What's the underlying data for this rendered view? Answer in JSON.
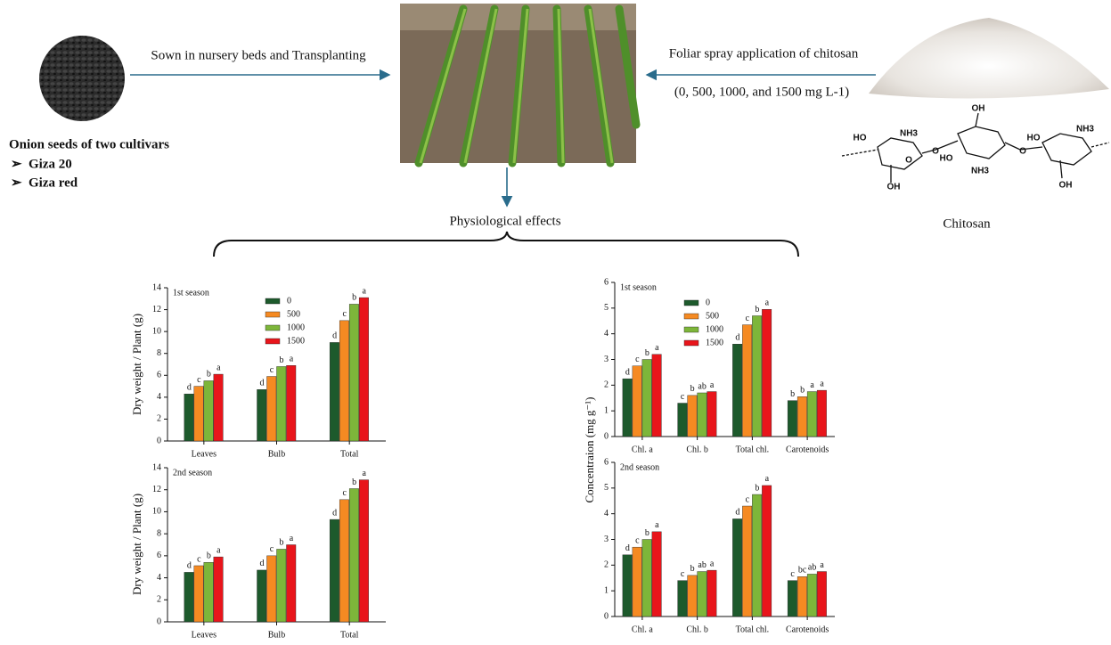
{
  "diagram": {
    "sowing_label": "Sown in nursery beds and Transplanting",
    "spray_label": "Foliar spray application of chitosan",
    "dose_label": "(0, 500, 1000, and 1500 mg L-1)",
    "seeds_title": "Onion seeds of two cultivars",
    "cultivars": [
      "Giza 20",
      "Giza red"
    ],
    "effects_label": "Physiological effects",
    "chitosan_label": "Chitosan",
    "structure_labels": [
      "HO",
      "NH3",
      "O",
      "O",
      "OH",
      "HO",
      "NH3",
      "O",
      "HO",
      "NH3",
      "OH",
      "OH"
    ]
  },
  "chart_data": [
    {
      "type": "bar",
      "subtitle": "1st season",
      "ylabel": "Dry weight / Plant (g)",
      "categories": [
        "Leaves",
        "Bulb",
        "Total"
      ],
      "ylim": [
        0,
        14
      ],
      "yticks": [
        0,
        2,
        4,
        6,
        8,
        10,
        12,
        14
      ],
      "legend": true,
      "series": [
        {
          "name": "0",
          "color": "#1d5a2c",
          "values": [
            4.3,
            4.7,
            9.0
          ],
          "letters": [
            "d",
            "d",
            "d"
          ]
        },
        {
          "name": "500",
          "color": "#f58a22",
          "values": [
            5.0,
            5.9,
            11.0
          ],
          "letters": [
            "c",
            "c",
            "c"
          ]
        },
        {
          "name": "1000",
          "color": "#7db63a",
          "values": [
            5.5,
            6.8,
            12.5
          ],
          "letters": [
            "b",
            "b",
            "b"
          ]
        },
        {
          "name": "1500",
          "color": "#e8151b",
          "values": [
            6.1,
            6.9,
            13.1
          ],
          "letters": [
            "a",
            "a",
            "a"
          ]
        }
      ]
    },
    {
      "type": "bar",
      "subtitle": "2nd season",
      "ylabel": "Dry weight / Plant (g)",
      "categories": [
        "Leaves",
        "Bulb",
        "Total"
      ],
      "ylim": [
        0,
        14
      ],
      "yticks": [
        0,
        2,
        4,
        6,
        8,
        10,
        12,
        14
      ],
      "legend": false,
      "series": [
        {
          "color": "#1d5a2c",
          "values": [
            4.5,
            4.7,
            9.3
          ],
          "letters": [
            "d",
            "d",
            "d"
          ]
        },
        {
          "color": "#f58a22",
          "values": [
            5.1,
            6.0,
            11.1
          ],
          "letters": [
            "c",
            "c",
            "c"
          ]
        },
        {
          "color": "#7db63a",
          "values": [
            5.4,
            6.6,
            12.1
          ],
          "letters": [
            "b",
            "b",
            "b"
          ]
        },
        {
          "color": "#e8151b",
          "values": [
            5.9,
            7.0,
            12.9
          ],
          "letters": [
            "a",
            "a",
            "a"
          ]
        }
      ]
    },
    {
      "type": "bar",
      "subtitle": "1st season",
      "categories": [
        "Chl. a",
        "Chl. b",
        "Total chl.",
        "Carotenoids"
      ],
      "ylim": [
        0,
        6
      ],
      "yticks": [
        0,
        1,
        2,
        3,
        4,
        5,
        6
      ],
      "legend": true,
      "series": [
        {
          "name": "0",
          "color": "#1d5a2c",
          "values": [
            2.25,
            1.3,
            3.6,
            1.4
          ],
          "letters": [
            "d",
            "c",
            "d",
            "b"
          ]
        },
        {
          "name": "500",
          "color": "#f58a22",
          "values": [
            2.75,
            1.6,
            4.35,
            1.55
          ],
          "letters": [
            "c",
            "b",
            "c",
            "b"
          ]
        },
        {
          "name": "1000",
          "color": "#7db63a",
          "values": [
            3.0,
            1.7,
            4.7,
            1.75
          ],
          "letters": [
            "b",
            "ab",
            "b",
            "a"
          ]
        },
        {
          "name": "1500",
          "color": "#e8151b",
          "values": [
            3.2,
            1.75,
            4.95,
            1.8
          ],
          "letters": [
            "a",
            "a",
            "a",
            "a"
          ]
        }
      ]
    },
    {
      "type": "bar",
      "subtitle": "2nd season",
      "ylabel": "Concentraion (mg g⁻¹)",
      "categories": [
        "Chl. a",
        "Chl. b",
        "Total chl.",
        "Carotenoids"
      ],
      "ylim": [
        0,
        6
      ],
      "yticks": [
        0,
        1,
        2,
        3,
        4,
        5,
        6
      ],
      "legend": false,
      "series": [
        {
          "color": "#1d5a2c",
          "values": [
            2.4,
            1.4,
            3.8,
            1.4
          ],
          "letters": [
            "d",
            "c",
            "d",
            "c"
          ]
        },
        {
          "color": "#f58a22",
          "values": [
            2.7,
            1.6,
            4.3,
            1.55
          ],
          "letters": [
            "c",
            "b",
            "c",
            "bc"
          ]
        },
        {
          "color": "#7db63a",
          "values": [
            3.0,
            1.75,
            4.75,
            1.65
          ],
          "letters": [
            "b",
            "ab",
            "b",
            "ab"
          ]
        },
        {
          "color": "#e8151b",
          "values": [
            3.3,
            1.8,
            5.1,
            1.75
          ],
          "letters": [
            "a",
            "a",
            "a",
            "a"
          ]
        }
      ]
    }
  ]
}
